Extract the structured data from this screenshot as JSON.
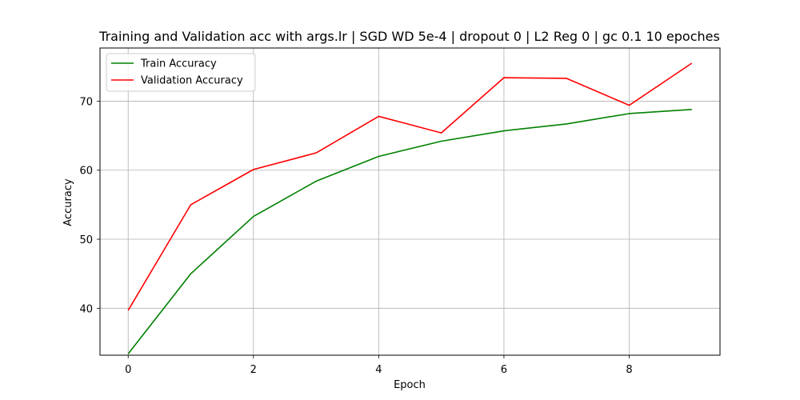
{
  "chart_data": {
    "type": "line",
    "title": "Training and Validation acc with args.lr | SGD WD 5e-4 | dropout 0 | L2 Reg 0 | gc 0.1 10 epoches",
    "xlabel": "Epoch",
    "ylabel": "Accuracy",
    "x": [
      0,
      1,
      2,
      3,
      4,
      5,
      6,
      7,
      8,
      9
    ],
    "xlim": [
      -0.45,
      9.45
    ],
    "ylim": [
      33.2,
      77.7
    ],
    "xticks": [
      0,
      2,
      4,
      6,
      8
    ],
    "yticks": [
      40,
      50,
      60,
      70
    ],
    "grid": true,
    "legend_position": "upper-left",
    "series": [
      {
        "name": "Train Accuracy",
        "color": "#008000",
        "values": [
          33.4,
          45.0,
          53.3,
          58.4,
          62.0,
          64.2,
          65.7,
          66.7,
          68.2,
          68.8
        ]
      },
      {
        "name": "Validation Accuracy",
        "color": "#ff0000",
        "values": [
          39.7,
          55.0,
          60.1,
          62.5,
          67.8,
          65.4,
          73.4,
          73.3,
          69.4,
          75.5
        ]
      }
    ]
  }
}
